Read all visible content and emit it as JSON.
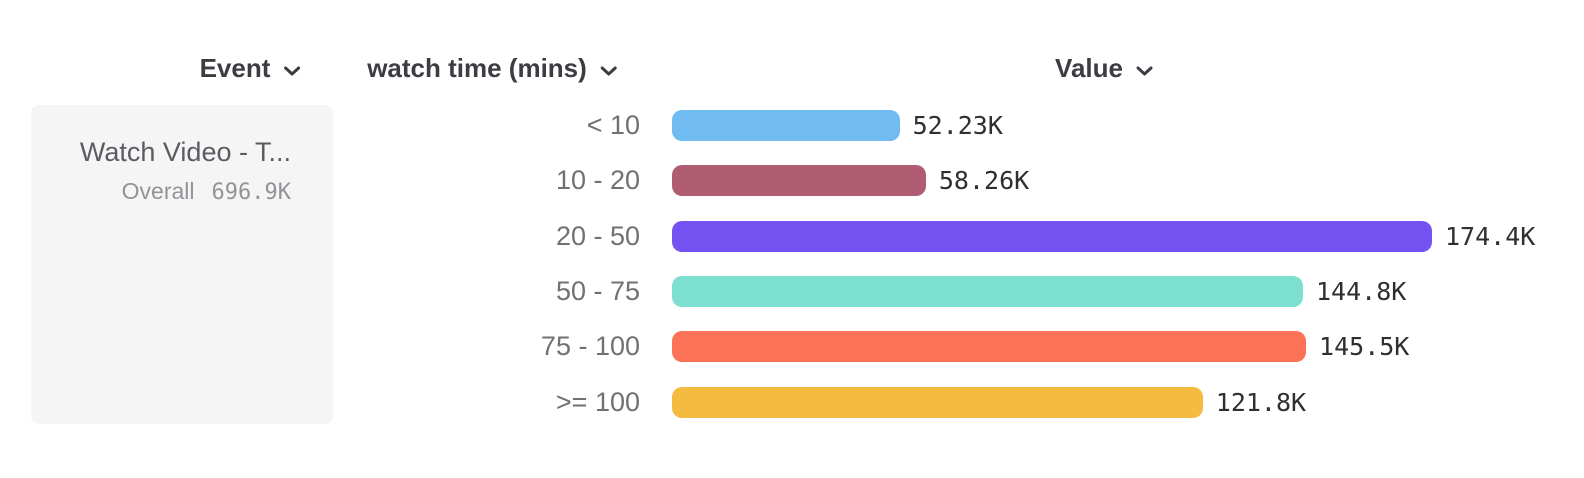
{
  "header": {
    "event_label": "Event",
    "breakdown_label": "watch time (mins)",
    "value_label": "Value"
  },
  "event_card": {
    "title": "Watch Video - T...",
    "overall_label": "Overall",
    "overall_value": "696.9K"
  },
  "icons": {
    "dropdown_chevron": "chevron-down"
  },
  "colors": {
    "header_text": "#3c3c43",
    "category_label": "#707075",
    "value_label": "#2e2e33",
    "card_background": "#f5f5f6",
    "card_title": "#5b5c61",
    "card_overall": "#939398"
  },
  "chart_data": {
    "type": "bar",
    "orientation": "horizontal",
    "category_axis_label": "watch time (mins)",
    "value_axis_label": "Value",
    "categories": [
      "< 10",
      "10 - 20",
      "20 - 50",
      "50 - 75",
      "75 - 100",
      ">= 100"
    ],
    "values": [
      52230,
      58260,
      174400,
      144800,
      145500,
      121800
    ],
    "value_labels": [
      "52.23K",
      "58.26K",
      "174.4K",
      "144.8K",
      "145.5K",
      "121.8K"
    ],
    "bar_colors": [
      "#6fbbf2",
      "#b05c72",
      "#7451f1",
      "#7cdfd0",
      "#fc7256",
      "#f5bb41"
    ],
    "max_value": 174400,
    "grid": false,
    "legend": false,
    "overall_total": "696.9K"
  }
}
